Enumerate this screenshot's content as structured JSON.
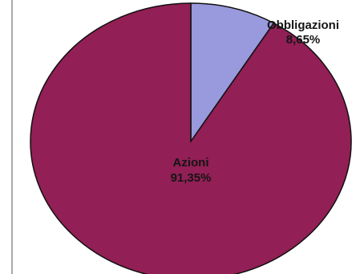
{
  "chart_data": {
    "type": "pie",
    "title": "",
    "slices": [
      {
        "label": "Obbligazioni",
        "value": 8.65,
        "value_label": "8,65%",
        "color": "#9999dd"
      },
      {
        "label": "Azioni",
        "value": 91.35,
        "value_label": "91,35%",
        "color": "#921f55"
      }
    ],
    "legend": "none"
  }
}
